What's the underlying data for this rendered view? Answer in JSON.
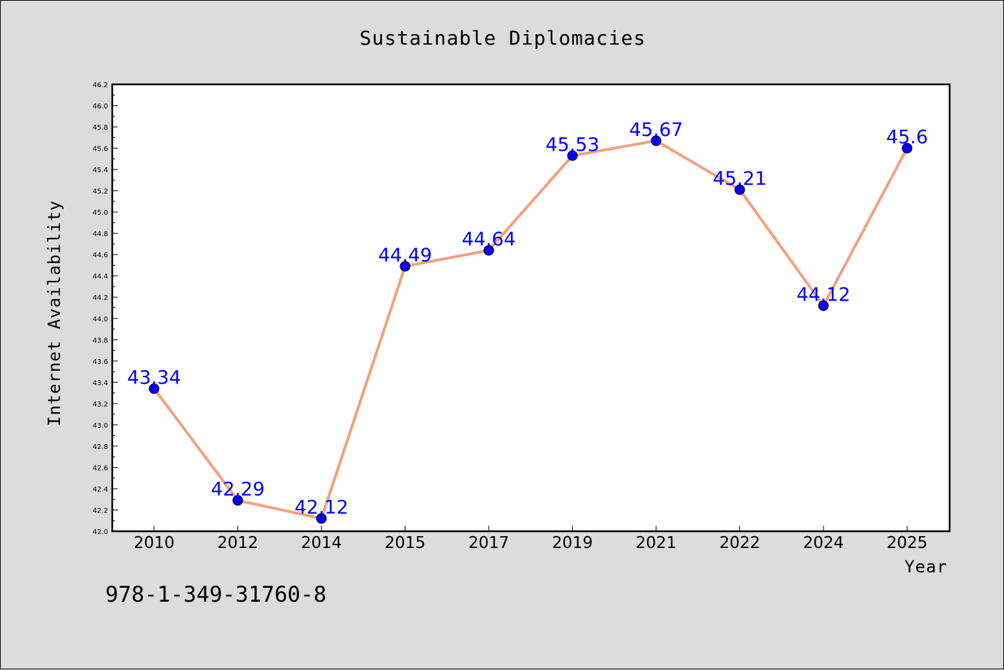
{
  "chart_data": {
    "type": "line",
    "title": "Sustainable Diplomacies",
    "xlabel": "Year",
    "ylabel": "Internet Availability",
    "categories": [
      "2010",
      "2012",
      "2014",
      "2015",
      "2017",
      "2019",
      "2021",
      "2022",
      "2024",
      "2025"
    ],
    "series": [
      {
        "values": [
          43.34,
          42.29,
          42.12,
          44.49,
          44.64,
          45.53,
          45.67,
          45.21,
          44.12,
          45.6
        ],
        "data_labels": [
          "43.34",
          "42.29",
          "42.12",
          "44.49",
          "44.64",
          "45.53",
          "45.67",
          "45.21",
          "44.12",
          "45.6"
        ]
      }
    ],
    "ylim": [
      42.0,
      46.2
    ],
    "yticks": [
      "42.0",
      "42.2",
      "42.4",
      "42.6",
      "42.8",
      "43.0",
      "43.2",
      "43.4",
      "43.6",
      "43.8",
      "44.0",
      "44.2",
      "44.4",
      "44.6",
      "44.8",
      "45.0",
      "45.2",
      "45.4",
      "45.6",
      "45.8",
      "46.0",
      "46.2"
    ],
    "grid": false,
    "legend": "none",
    "line_color": "#f4a07e",
    "marker_color": "#0000ff",
    "label_color": "#0000ff"
  },
  "annotation": "978-1-349-31760-8"
}
